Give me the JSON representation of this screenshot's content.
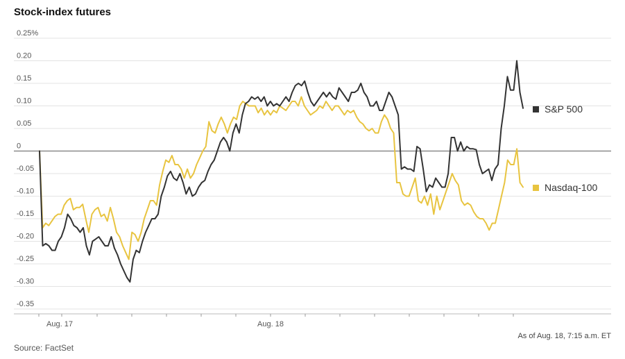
{
  "chart_data": {
    "type": "line",
    "title": "Stock-index futures",
    "ylim": [
      -0.35,
      0.25
    ],
    "yticks": [
      0.25,
      0.2,
      0.15,
      0.1,
      0.05,
      0,
      -0.05,
      -0.1,
      -0.15,
      -0.2,
      -0.25,
      -0.3,
      -0.35
    ],
    "ytick_labels": [
      "0.25%",
      "0.20",
      "0.15",
      "0.10",
      "0.05",
      "0",
      "-0.05",
      "-0.10",
      "-0.15",
      "-0.20",
      "-0.25",
      "-0.30",
      "-0.35"
    ],
    "xlabels": [
      "Aug. 17",
      "Aug. 18"
    ],
    "grid": true,
    "legend": "right, inline at line ends",
    "series": [
      {
        "name": "S&P 500",
        "color": "#333333",
        "values": [
          0.0,
          -0.21,
          -0.205,
          -0.21,
          -0.22,
          -0.22,
          -0.2,
          -0.19,
          -0.17,
          -0.14,
          -0.15,
          -0.165,
          -0.17,
          -0.18,
          -0.17,
          -0.21,
          -0.23,
          -0.2,
          -0.195,
          -0.19,
          -0.2,
          -0.21,
          -0.21,
          -0.19,
          -0.215,
          -0.23,
          -0.25,
          -0.265,
          -0.28,
          -0.29,
          -0.24,
          -0.22,
          -0.225,
          -0.2,
          -0.18,
          -0.165,
          -0.15,
          -0.15,
          -0.14,
          -0.1,
          -0.08,
          -0.055,
          -0.045,
          -0.06,
          -0.065,
          -0.05,
          -0.07,
          -0.095,
          -0.08,
          -0.1,
          -0.095,
          -0.08,
          -0.07,
          -0.065,
          -0.045,
          -0.03,
          -0.02,
          0.0,
          0.02,
          0.03,
          0.02,
          0.0,
          0.04,
          0.06,
          0.04,
          0.08,
          0.105,
          0.11,
          0.12,
          0.115,
          0.12,
          0.11,
          0.12,
          0.1,
          0.11,
          0.1,
          0.105,
          0.1,
          0.11,
          0.12,
          0.11,
          0.13,
          0.145,
          0.15,
          0.145,
          0.155,
          0.13,
          0.11,
          0.1,
          0.11,
          0.12,
          0.13,
          0.12,
          0.13,
          0.12,
          0.115,
          0.14,
          0.13,
          0.12,
          0.11,
          0.13,
          0.13,
          0.135,
          0.15,
          0.13,
          0.12,
          0.1,
          0.1,
          0.11,
          0.09,
          0.09,
          0.11,
          0.13,
          0.12,
          0.1,
          0.08,
          -0.04,
          -0.035,
          -0.04,
          -0.04,
          -0.045,
          0.01,
          0.005,
          -0.04,
          -0.09,
          -0.075,
          -0.08,
          -0.06,
          -0.07,
          -0.08,
          -0.08,
          -0.05,
          0.03,
          0.03,
          0.0,
          0.02,
          0.0,
          0.01,
          0.005,
          0.005,
          0.003,
          -0.03,
          -0.05,
          -0.045,
          -0.04,
          -0.065,
          -0.04,
          -0.03,
          0.05,
          0.1,
          0.165,
          0.135,
          0.135,
          0.2,
          0.13,
          0.095
        ]
      },
      {
        "name": "Nasdaq-100",
        "color": "#e8c440",
        "values": [
          0.0,
          -0.17,
          -0.16,
          -0.165,
          -0.155,
          -0.145,
          -0.14,
          -0.14,
          -0.12,
          -0.11,
          -0.105,
          -0.13,
          -0.125,
          -0.125,
          -0.118,
          -0.15,
          -0.18,
          -0.14,
          -0.13,
          -0.125,
          -0.145,
          -0.14,
          -0.155,
          -0.125,
          -0.15,
          -0.18,
          -0.19,
          -0.21,
          -0.225,
          -0.24,
          -0.18,
          -0.185,
          -0.2,
          -0.18,
          -0.15,
          -0.13,
          -0.11,
          -0.11,
          -0.12,
          -0.075,
          -0.045,
          -0.02,
          -0.025,
          -0.01,
          -0.03,
          -0.03,
          -0.04,
          -0.06,
          -0.04,
          -0.06,
          -0.05,
          -0.03,
          -0.015,
          0.0,
          0.01,
          0.065,
          0.045,
          0.04,
          0.06,
          0.075,
          0.06,
          0.04,
          0.06,
          0.075,
          0.07,
          0.1,
          0.11,
          0.105,
          0.1,
          0.1,
          0.1,
          0.085,
          0.095,
          0.08,
          0.09,
          0.08,
          0.09,
          0.085,
          0.1,
          0.095,
          0.09,
          0.1,
          0.11,
          0.11,
          0.1,
          0.12,
          0.1,
          0.09,
          0.08,
          0.085,
          0.09,
          0.1,
          0.095,
          0.11,
          0.1,
          0.09,
          0.1,
          0.1,
          0.09,
          0.08,
          0.09,
          0.085,
          0.09,
          0.075,
          0.065,
          0.06,
          0.05,
          0.045,
          0.05,
          0.04,
          0.04,
          0.065,
          0.08,
          0.07,
          0.05,
          0.04,
          -0.07,
          -0.07,
          -0.095,
          -0.1,
          -0.1,
          -0.08,
          -0.06,
          -0.11,
          -0.115,
          -0.1,
          -0.12,
          -0.095,
          -0.14,
          -0.1,
          -0.13,
          -0.11,
          -0.09,
          -0.07,
          -0.05,
          -0.065,
          -0.075,
          -0.11,
          -0.12,
          -0.115,
          -0.12,
          -0.135,
          -0.145,
          -0.15,
          -0.15,
          -0.16,
          -0.175,
          -0.16,
          -0.16,
          -0.13,
          -0.1,
          -0.07,
          -0.02,
          -0.03,
          -0.03,
          0.005,
          -0.07,
          -0.08
        ]
      }
    ]
  },
  "footer": {
    "source": "Source: FactSet",
    "as_of": "As of Aug. 18, 7:15 a.m. ET"
  }
}
